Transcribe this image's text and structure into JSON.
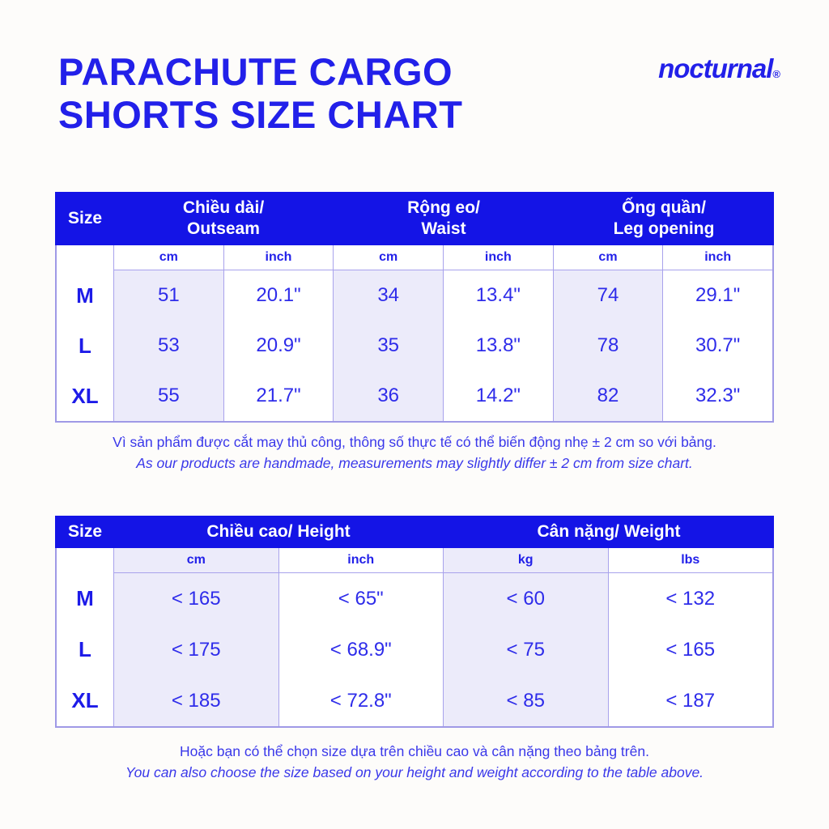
{
  "page": {
    "title": "PARACHUTE CARGO\nSHORTS SIZE CHART",
    "brand": "nocturnal",
    "brand_reg": "®"
  },
  "colors": {
    "accent_blue": "#1414e6",
    "text_blue": "#2e2cea",
    "cell_lavender": "#ecebfa",
    "border_purple": "#9f99e6",
    "background": "#fdfcfa"
  },
  "table1": {
    "size_header": "Size",
    "groups": [
      "Chiều dài/\nOutseam",
      "Rộng eo/\nWaist",
      "Ống quần/\nLeg opening"
    ],
    "subheaders": [
      "cm",
      "inch",
      "cm",
      "inch",
      "cm",
      "inch"
    ],
    "rows": [
      {
        "size": "M",
        "values": [
          "51",
          "20.1\"",
          "34",
          "13.4\"",
          "74",
          "29.1\""
        ]
      },
      {
        "size": "L",
        "values": [
          "53",
          "20.9\"",
          "35",
          "13.8\"",
          "78",
          "30.7\""
        ]
      },
      {
        "size": "XL",
        "values": [
          "55",
          "21.7\"",
          "36",
          "14.2\"",
          "82",
          "32.3\""
        ]
      }
    ]
  },
  "note1": {
    "vi": "Vì sản phẩm được cắt may thủ công, thông số thực tế có thể biến động nhẹ ± 2 cm so với bảng.",
    "en": "As our products are handmade, measurements may slightly differ ± 2 cm from size chart."
  },
  "table2": {
    "size_header": "Size",
    "groups": [
      "Chiều cao/ Height",
      "Cân nặng/ Weight"
    ],
    "subheaders": [
      "cm",
      "inch",
      "kg",
      "lbs"
    ],
    "rows": [
      {
        "size": "M",
        "values": [
          "< 165",
          "< 65\"",
          "< 60",
          "< 132"
        ]
      },
      {
        "size": "L",
        "values": [
          "< 175",
          "< 68.9\"",
          "< 75",
          "< 165"
        ]
      },
      {
        "size": "XL",
        "values": [
          "< 185",
          "< 72.8\"",
          "< 85",
          "< 187"
        ]
      }
    ]
  },
  "note2": {
    "vi": "Hoặc bạn có thể chọn size dựa trên chiều cao và cân nặng theo bảng trên.",
    "en": "You can also choose the size based on your height and weight according to the table above."
  }
}
